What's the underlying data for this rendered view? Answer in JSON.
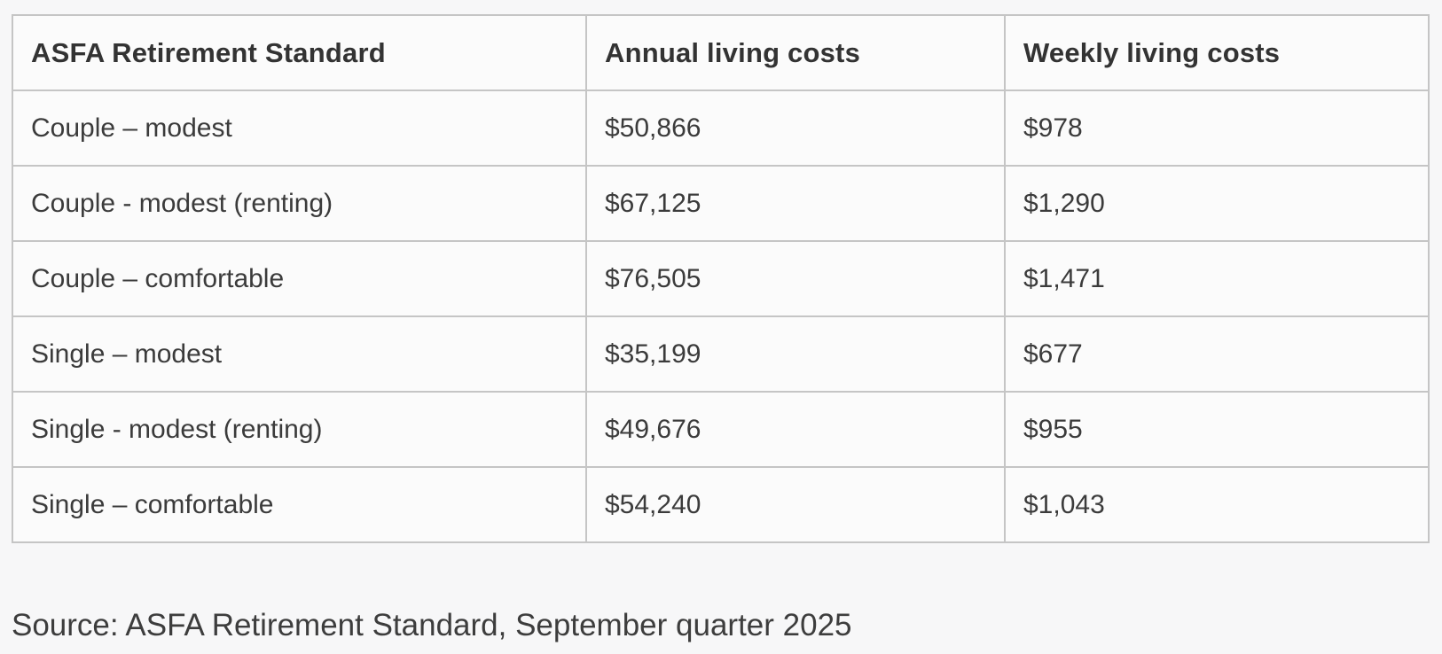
{
  "table": {
    "columns": [
      "ASFA Retirement Standard",
      "Annual living costs",
      "Weekly living costs"
    ],
    "rows": [
      {
        "label": "Couple – modest",
        "annual": "$50,866",
        "weekly": "$978"
      },
      {
        "label": "Couple - modest (renting)",
        "annual": "$67,125",
        "weekly": "$1,290"
      },
      {
        "label": "Couple – comfortable",
        "annual": "$76,505",
        "weekly": "$1,471"
      },
      {
        "label": "Single – modest",
        "annual": "$35,199",
        "weekly": "$677"
      },
      {
        "label": "Single - modest (renting)",
        "annual": "$49,676",
        "weekly": "$955"
      },
      {
        "label": "Single – comfortable",
        "annual": "$54,240",
        "weekly": "$1,043"
      }
    ]
  },
  "source_note": "Source: ASFA Retirement Standard, September quarter 2025",
  "colors": {
    "border": "#c5c5c5",
    "cell_background": "#fbfbfb",
    "page_background": "#f7f7f8",
    "header_text": "#333333",
    "body_text": "#3b3b3b"
  }
}
